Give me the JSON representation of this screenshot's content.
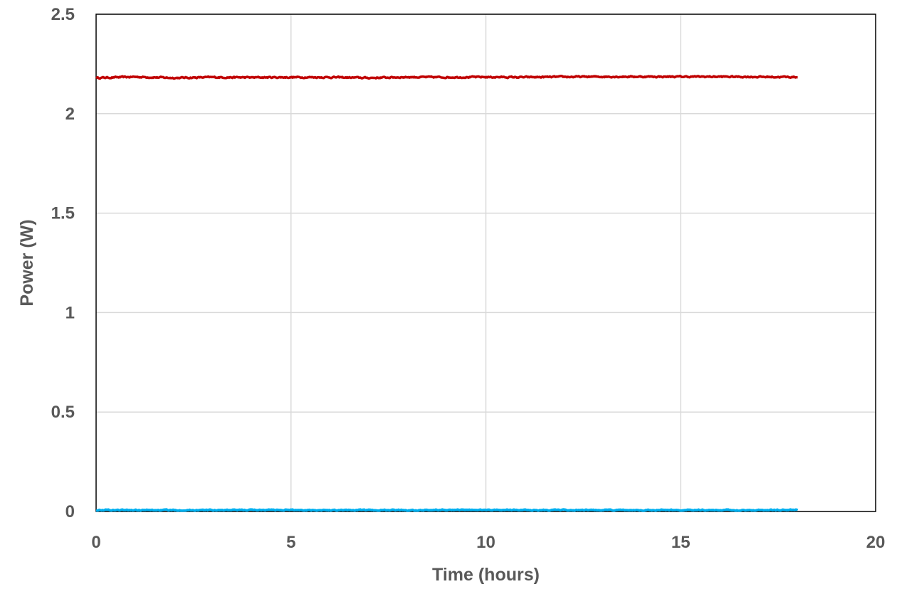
{
  "chart_data": {
    "type": "line",
    "title": "",
    "xlabel": "Time (hours)",
    "ylabel": "Power (W)",
    "xlim": [
      0,
      20
    ],
    "ylim": [
      0,
      2.5
    ],
    "xticks": [
      0,
      5,
      10,
      15,
      20
    ],
    "yticks": [
      0,
      0.5,
      1,
      1.5,
      2,
      2.5
    ],
    "xtick_labels": [
      "0",
      "5",
      "10",
      "15",
      "20"
    ],
    "ytick_labels": [
      "0",
      "0.5",
      "1",
      "1.5",
      "2",
      "2.5"
    ],
    "grid": true,
    "legend": "none",
    "series": [
      {
        "color": "#C00000",
        "x": [
          0,
          1,
          2,
          3,
          4,
          5,
          6,
          7,
          8,
          9,
          10,
          11,
          12,
          13,
          14,
          15,
          16,
          17,
          18
        ],
        "y": [
          2.18,
          2.185,
          2.18,
          2.183,
          2.182,
          2.183,
          2.183,
          2.18,
          2.184,
          2.183,
          2.184,
          2.183,
          2.185,
          2.186,
          2.186,
          2.186,
          2.186,
          2.185,
          2.184
        ]
      },
      {
        "color": "#00B0F0",
        "x": [
          0,
          1,
          2,
          3,
          4,
          5,
          6,
          7,
          8,
          9,
          10,
          11,
          12,
          13,
          14,
          15,
          16,
          17,
          18
        ],
        "y": [
          0.008,
          0.007,
          0.007,
          0.007,
          0.008,
          0.008,
          0.007,
          0.007,
          0.007,
          0.008,
          0.008,
          0.008,
          0.007,
          0.007,
          0.007,
          0.007,
          0.007,
          0.007,
          0.008
        ]
      }
    ]
  }
}
